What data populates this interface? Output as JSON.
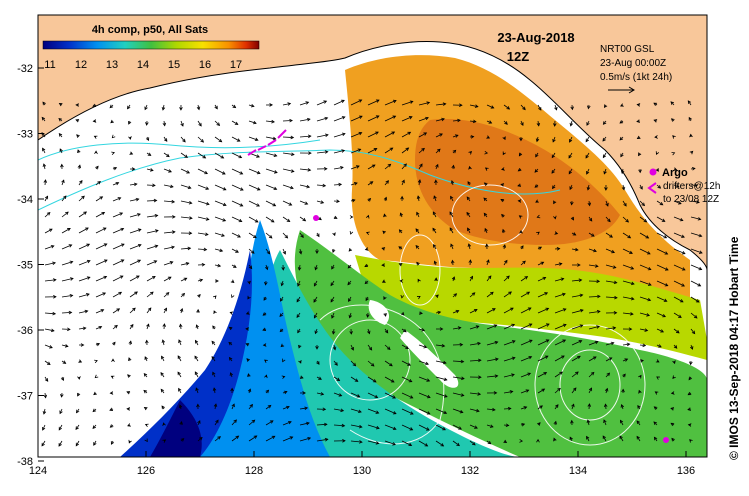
{
  "map": {
    "title": "4h comp, p50, All Sats",
    "date": "23-Aug-2018",
    "time": "12Z",
    "product": "NRT00 GSL",
    "product_time": "23-Aug 00:00Z",
    "vector_scale": "0.5m/s (1kt 24h)",
    "argo_label": "Argo",
    "drifters_label": "drifters@12h",
    "drifters_to": "to 23/08 12Z",
    "credit": "© IMOS 13-Sep-2018 04:17 Hobart Time",
    "colorbar_ticks": [
      "11",
      "12",
      "13",
      "14",
      "15",
      "16",
      "17"
    ],
    "lat_ticks": [
      "-32",
      "-33",
      "-34",
      "-35",
      "-36",
      "-37",
      "-38"
    ],
    "lon_ticks": [
      "124",
      "126",
      "128",
      "130",
      "132",
      "134",
      "136"
    ],
    "colors": {
      "land": "#f8c79a",
      "cloud": "#ffffff",
      "argo": "#e000e0",
      "contour_cyan": "#34d6e0"
    },
    "colorbar_stops": [
      "#00007f",
      "#0030c8",
      "#0090f0",
      "#20d0c0",
      "#40c040",
      "#b0d800",
      "#f8e000",
      "#f89000",
      "#e03000",
      "#800000"
    ]
  }
}
